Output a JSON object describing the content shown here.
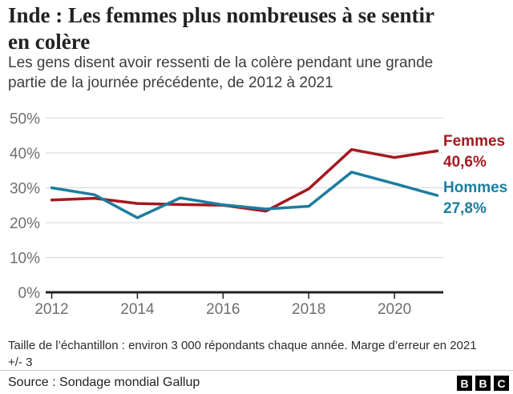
{
  "header": {},
  "chart_data": {
    "type": "line",
    "title": "Inde : Les femmes plus nombreuses à se sentir en colère",
    "subtitle": "Les gens disent avoir ressenti de la colère pendant une grande partie de la journée précédente, de 2012 à 2021",
    "x": [
      2012,
      2013,
      2014,
      2015,
      2016,
      2017,
      2018,
      2019,
      2020,
      2021
    ],
    "series": [
      {
        "name": "Femmes",
        "values": [
          26.5,
          27.0,
          25.5,
          25.2,
          25.0,
          23.3,
          29.7,
          41.0,
          38.7,
          40.6
        ],
        "color": "#a3191f",
        "end_label": "Femmes",
        "end_value_label": "40,6%"
      },
      {
        "name": "Hommes",
        "values": [
          30.0,
          28.0,
          21.4,
          27.1,
          25.1,
          23.9,
          24.7,
          34.5,
          31.2,
          27.8
        ],
        "color": "#1b7e9f",
        "end_label": "Hommes",
        "end_value_label": "27,8%"
      }
    ],
    "ylim": [
      0,
      50
    ],
    "yticks": [
      0,
      10,
      20,
      30,
      40,
      50
    ],
    "ytick_suffix": "%",
    "xticks": [
      2012,
      2014,
      2016,
      2018,
      2020
    ],
    "grid": true,
    "legend_position": "end-of-line",
    "axis_color": "#222222",
    "grid_color": "#d6d6d6",
    "tick_label_color": "#6e6e73"
  },
  "footer": {
    "note": "Taille de l’échantillon : environ 3 000 répondants chaque année. Marge d’erreur en 2021 +/- 3",
    "source": "Source : Sondage mondial Gallup",
    "logo_letters": [
      "B",
      "B",
      "C"
    ]
  }
}
